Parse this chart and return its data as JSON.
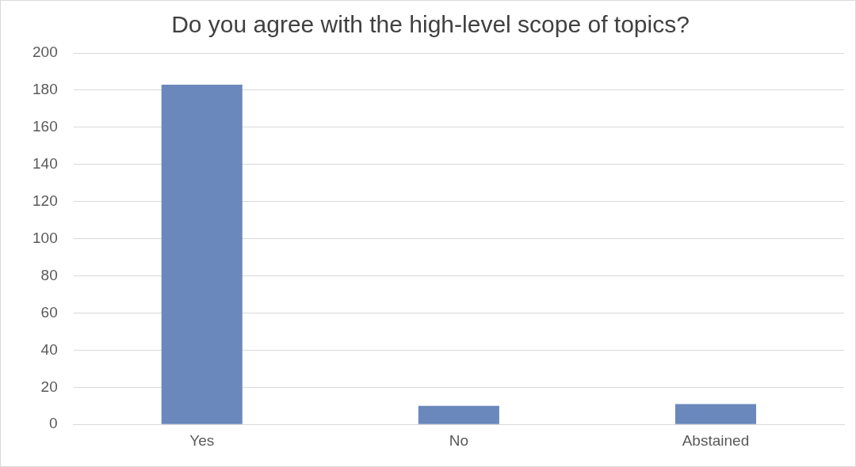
{
  "chart_data": {
    "type": "bar",
    "title": "Do you agree with the high-level scope of topics?",
    "categories": [
      "Yes",
      "No",
      "Abstained"
    ],
    "values": [
      183,
      10,
      11
    ],
    "color": "#6a88bb",
    "ylim": [
      0,
      200
    ],
    "yticks": [
      0,
      20,
      40,
      60,
      80,
      100,
      120,
      140,
      160,
      180,
      200
    ],
    "grid": "y",
    "legend": false
  }
}
